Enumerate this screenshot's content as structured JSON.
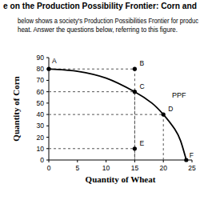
{
  "header": {
    "title": "e on the Production Possibility Frontier: Corn and",
    "lines": [
      "below shows a society's Production Possibilities Frontier for produc",
      "heat. Answer the questions below, referring to this figure."
    ]
  },
  "chart_data": {
    "type": "line",
    "xlabel": "Quantity of Wheat",
    "ylabel": "Quantity of Corn",
    "x": [
      0,
      5,
      10,
      15,
      18,
      20,
      22,
      23,
      24
    ],
    "series": [
      {
        "color": "#000000",
        "line_style": "solid",
        "values": [
          80,
          78,
          72,
          60,
          50,
          40,
          27,
          17,
          0
        ]
      }
    ],
    "xlim": [
      0,
      25
    ],
    "ylim": [
      0,
      90
    ],
    "xticks": [
      0,
      5,
      10,
      15,
      20,
      25
    ],
    "yticks": [
      0,
      10,
      20,
      30,
      40,
      50,
      60,
      70,
      80,
      90
    ],
    "grid": false,
    "points": [
      {
        "label": "A",
        "x": 0,
        "y": 80
      },
      {
        "label": "B",
        "x": 15,
        "y": 80
      },
      {
        "label": "C",
        "x": 15,
        "y": 60
      },
      {
        "label": "D",
        "x": 20,
        "y": 40
      },
      {
        "label": "E",
        "x": 15,
        "y": 10
      },
      {
        "label": "F",
        "x": 24,
        "y": 0
      }
    ],
    "annotations": [
      {
        "text": "PPF",
        "x": 21.5,
        "y": 55
      }
    ]
  }
}
